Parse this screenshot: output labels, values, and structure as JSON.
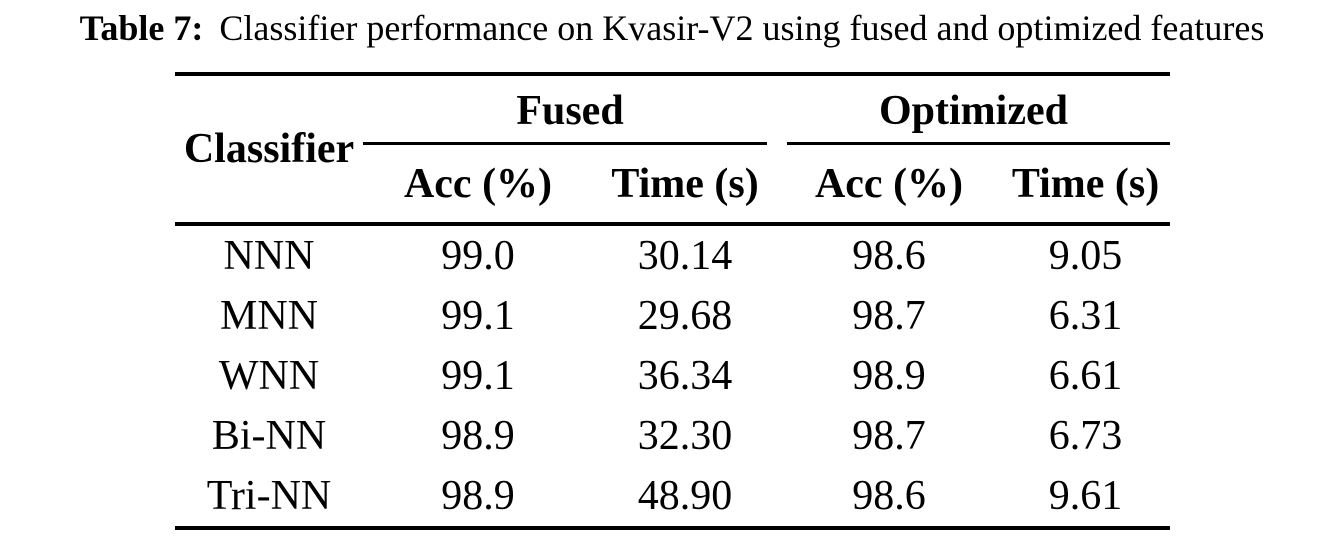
{
  "caption": {
    "label": "Table 7:",
    "text": "Classifier performance on Kvasir-V2 using fused and optimized features"
  },
  "table": {
    "classifier_header": "Classifier",
    "groups": [
      {
        "label": "Fused"
      },
      {
        "label": "Optimized"
      }
    ],
    "sub_headers": [
      "Acc (%)",
      "Time (s)",
      "Acc (%)",
      "Time (s)"
    ],
    "rows": [
      {
        "classifier": "NNN",
        "values": [
          "99.0",
          "30.14",
          "98.6",
          "9.05"
        ]
      },
      {
        "classifier": "MNN",
        "values": [
          "99.1",
          "29.68",
          "98.7",
          "6.31"
        ]
      },
      {
        "classifier": "WNN",
        "values": [
          "99.1",
          "36.34",
          "98.9",
          "6.61"
        ]
      },
      {
        "classifier": "Bi-NN",
        "values": [
          "98.9",
          "32.30",
          "98.7",
          "6.73"
        ]
      },
      {
        "classifier": "Tri-NN",
        "values": [
          "98.9",
          "48.90",
          "98.6",
          "9.61"
        ]
      }
    ],
    "colors": {
      "text": "#000000",
      "background": "#ffffff",
      "rule": "#000000"
    }
  }
}
